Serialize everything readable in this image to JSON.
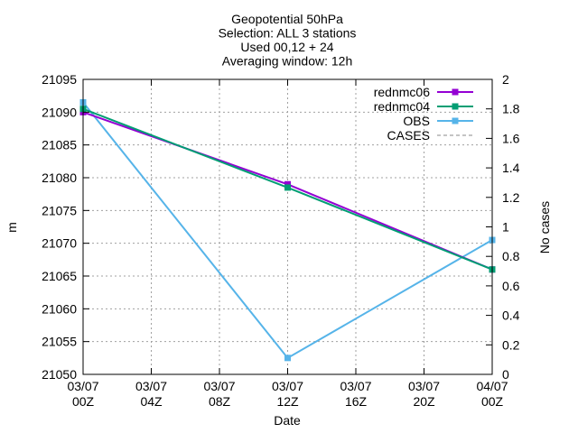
{
  "chart_data": {
    "type": "line",
    "title_lines": [
      "Geopotential 50hPa",
      "Selection: ALL       3 stations",
      "Used 00,12 + 24",
      "Averaging window: 12h"
    ],
    "xlabel": "Date",
    "ylabel": "m",
    "y2label": "No cases",
    "x_ticks": [
      {
        "date": "03/07",
        "hour": "00Z",
        "t": 0
      },
      {
        "date": "03/07",
        "hour": "04Z",
        "t": 4
      },
      {
        "date": "03/07",
        "hour": "08Z",
        "t": 8
      },
      {
        "date": "03/07",
        "hour": "12Z",
        "t": 12
      },
      {
        "date": "03/07",
        "hour": "16Z",
        "t": 16
      },
      {
        "date": "03/07",
        "hour": "20Z",
        "t": 20
      },
      {
        "date": "04/07",
        "hour": "00Z",
        "t": 24
      }
    ],
    "xlim": [
      0,
      24
    ],
    "ylim": [
      21050,
      21095
    ],
    "y_ticks": [
      21050,
      21055,
      21060,
      21065,
      21070,
      21075,
      21080,
      21085,
      21090,
      21095
    ],
    "y2lim": [
      0,
      2
    ],
    "y2_ticks": [
      "0",
      "0.2",
      "0.4",
      "0.6",
      "0.8",
      "1",
      "1.2",
      "1.4",
      "1.6",
      "1.8",
      "2"
    ],
    "grid": true,
    "legend_position": "top-right",
    "series": [
      {
        "name": "rednmc06",
        "color": "#9400d3",
        "dash": false,
        "marker": true,
        "x": [
          0,
          12,
          24
        ],
        "values": [
          21090,
          21079,
          21066
        ]
      },
      {
        "name": "rednmc04",
        "color": "#009e73",
        "dash": false,
        "marker": true,
        "x": [
          0,
          12,
          24
        ],
        "values": [
          21090.5,
          21078.5,
          21066
        ]
      },
      {
        "name": "OBS",
        "color": "#56b4e9",
        "dash": false,
        "marker": true,
        "x": [
          0,
          12,
          24
        ],
        "values": [
          21091.5,
          21052.5,
          21070.5
        ]
      },
      {
        "name": "CASES",
        "color": "#888888",
        "dash": true,
        "marker": false,
        "x": [],
        "values": []
      }
    ]
  }
}
